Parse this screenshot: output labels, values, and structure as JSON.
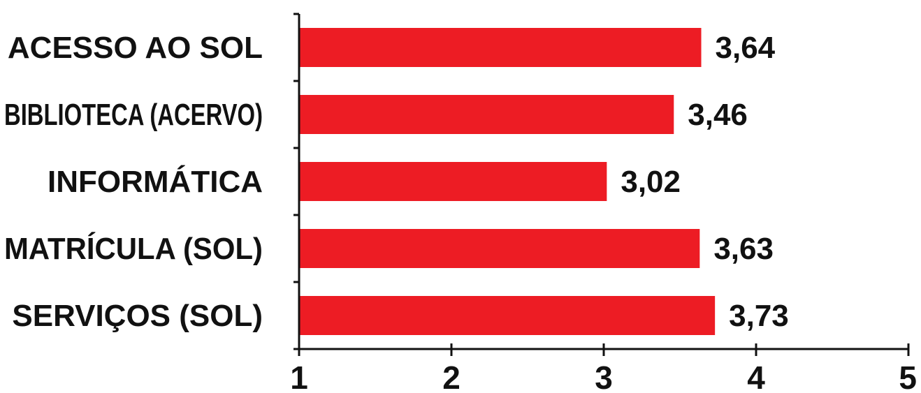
{
  "chart_data": {
    "type": "bar",
    "orientation": "horizontal",
    "categories": [
      "ACESSO AO SOL",
      "BIBLIOTECA (ACERVO)",
      "INFORMÁTICA",
      "MATRÍCULA (SOL)",
      "SERVIÇOS (SOL)"
    ],
    "values": [
      3.64,
      3.46,
      3.02,
      3.63,
      3.73
    ],
    "value_labels": [
      "3,64",
      "3,46",
      "3,02",
      "3,63",
      "3,73"
    ],
    "xlim": [
      1,
      5
    ],
    "xticks": [
      1,
      2,
      3,
      4,
      5
    ],
    "xtick_labels": [
      "1",
      "2",
      "3",
      "4",
      "5"
    ],
    "title": "",
    "xlabel": "",
    "ylabel": "",
    "grid": false,
    "legend": false,
    "bar_color": "#ed1c24",
    "text_color": "#111111"
  }
}
